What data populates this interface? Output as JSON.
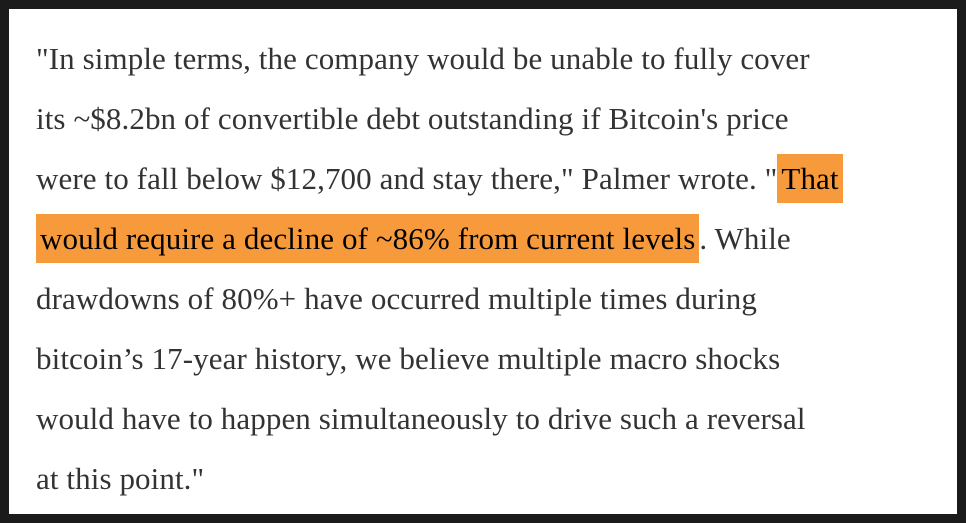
{
  "page": {
    "background_color": "#ffffff",
    "border_color": "#1b1b1b",
    "text_color": "#333333",
    "highlight_color": "#f79a3b",
    "highlight_text_color": "#000000"
  },
  "quote": {
    "full_text": "\"In simple terms, the company would be unable to fully cover its ~$8.2bn of convertible debt outstanding if Bitcoin's price were to fall below $12,700 and stay there,\" Palmer wrote. \"That would require a decline of ~86% from current levels. While drawdowns of 80%+ have occurred multiple times during bitcoin’s 17-year history, we believe multiple macro shocks would have to happen simultaneously to drive such a reversal at this point.\"",
    "highlighted_text": "That would require a decline of ~86% from current levels",
    "lines": [
      {
        "segments": [
          {
            "text": "\"In simple terms, the company would be unable to fully cover",
            "highlight": false
          }
        ]
      },
      {
        "segments": [
          {
            "text": "its ~$8.2bn of convertible debt outstanding if Bitcoin's price",
            "highlight": false
          }
        ]
      },
      {
        "segments": [
          {
            "text": "were to fall below $12,700 and stay there,\" Palmer wrote. \"",
            "highlight": false
          },
          {
            "text": "That",
            "highlight": true
          }
        ]
      },
      {
        "segments": [
          {
            "text": "would require a decline of ~86% from current levels",
            "highlight": true
          },
          {
            "text": ". While",
            "highlight": false
          }
        ]
      },
      {
        "segments": [
          {
            "text": "drawdowns of 80%+ have occurred multiple times during",
            "highlight": false
          }
        ]
      },
      {
        "segments": [
          {
            "text": "bitcoin’s 17-year history, we believe multiple macro shocks",
            "highlight": false
          }
        ]
      },
      {
        "segments": [
          {
            "text": "would have to happen simultaneously to drive such a reversal",
            "highlight": false
          }
        ]
      },
      {
        "segments": [
          {
            "text": "at this point.\"",
            "highlight": false
          }
        ]
      }
    ]
  }
}
